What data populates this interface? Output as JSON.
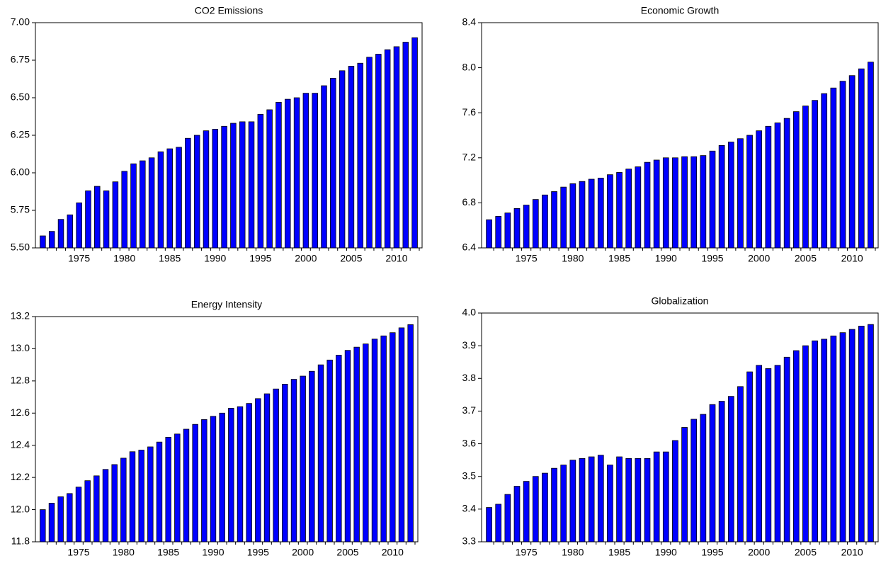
{
  "chart_data": [
    {
      "type": "bar",
      "title": "CO2 Emissions",
      "color": "#0000ff",
      "categories": [
        null,
        null,
        null,
        null,
        "1975",
        null,
        null,
        null,
        null,
        "1980",
        null,
        null,
        null,
        null,
        "1985",
        null,
        null,
        null,
        null,
        "1990",
        null,
        null,
        null,
        null,
        "1995",
        null,
        null,
        null,
        null,
        "2000",
        null,
        null,
        null,
        null,
        "2005",
        null,
        null,
        null,
        null,
        "2010",
        null,
        null
      ],
      "values": [
        5.58,
        5.61,
        5.69,
        5.72,
        5.8,
        5.88,
        5.91,
        5.88,
        5.94,
        6.01,
        6.06,
        6.08,
        6.1,
        6.14,
        6.16,
        6.17,
        6.23,
        6.25,
        6.28,
        6.29,
        6.31,
        6.33,
        6.34,
        6.34,
        6.39,
        6.42,
        6.47,
        6.49,
        6.5,
        6.53,
        6.53,
        6.58,
        6.63,
        6.68,
        6.71,
        6.73,
        6.77,
        6.79,
        6.82,
        6.84,
        6.87,
        6.9
      ],
      "ylim": [
        5.5,
        7.0
      ],
      "yticks": [
        {
          "value": 5.5,
          "label": "5.50"
        },
        5.75,
        {
          "value": 6,
          "label": "6.00"
        },
        6.25,
        {
          "value": 6.5,
          "label": "6.50"
        },
        6.75,
        {
          "value": 7,
          "label": "7.00"
        }
      ]
    },
    {
      "type": "bar",
      "title": "Economic Growth",
      "color": "#0000ff",
      "categories": [
        null,
        null,
        null,
        null,
        "1975",
        null,
        null,
        null,
        null,
        "1980",
        null,
        null,
        null,
        null,
        "1985",
        null,
        null,
        null,
        null,
        "1990",
        null,
        null,
        null,
        null,
        "1995",
        null,
        null,
        null,
        null,
        "2000",
        null,
        null,
        null,
        null,
        "2005",
        null,
        null,
        null,
        null,
        "2010",
        null,
        null
      ],
      "values": [
        6.65,
        6.68,
        6.71,
        6.75,
        6.78,
        6.83,
        6.87,
        6.9,
        6.94,
        6.97,
        6.99,
        7.01,
        7.02,
        7.05,
        7.07,
        7.1,
        7.12,
        7.16,
        7.18,
        7.2,
        7.2,
        7.21,
        7.21,
        7.22,
        7.26,
        7.31,
        7.34,
        7.37,
        7.4,
        7.44,
        7.48,
        7.51,
        7.55,
        7.61,
        7.66,
        7.71,
        7.77,
        7.82,
        7.88,
        7.93,
        7.99,
        8.05
      ],
      "ylim": [
        6.4,
        8.4
      ],
      "yticks": [
        6.4,
        6.8,
        7.2,
        7.6,
        {
          "value": 8,
          "label": "8.0"
        },
        8.4
      ]
    },
    {
      "type": "bar",
      "title": "Energy Intensity",
      "color": "#0000ff",
      "categories": [
        null,
        null,
        null,
        null,
        "1975",
        null,
        null,
        null,
        null,
        "1980",
        null,
        null,
        null,
        null,
        "1985",
        null,
        null,
        null,
        null,
        "1990",
        null,
        null,
        null,
        null,
        "1995",
        null,
        null,
        null,
        null,
        "2000",
        null,
        null,
        null,
        null,
        "2005",
        null,
        null,
        null,
        null,
        "2010",
        null,
        null
      ],
      "values": [
        12.0,
        12.04,
        12.08,
        12.1,
        12.14,
        12.18,
        12.21,
        12.25,
        12.28,
        12.32,
        12.36,
        12.37,
        12.39,
        12.42,
        12.45,
        12.47,
        12.5,
        12.53,
        12.56,
        12.58,
        12.6,
        12.63,
        12.64,
        12.66,
        12.69,
        12.72,
        12.75,
        12.78,
        12.81,
        12.83,
        12.86,
        12.9,
        12.93,
        12.96,
        12.99,
        13.01,
        13.03,
        13.06,
        13.08,
        13.1,
        13.13,
        13.15
      ],
      "ylim": [
        11.8,
        13.2
      ],
      "yticks": [
        11.8,
        {
          "value": 12,
          "label": "12.0"
        },
        12.2,
        12.4,
        12.6,
        12.8,
        {
          "value": 13,
          "label": "13.0"
        },
        13.2
      ]
    },
    {
      "type": "bar",
      "title": "Globalization",
      "color": "#0000ff",
      "categories": [
        null,
        null,
        null,
        null,
        "1975",
        null,
        null,
        null,
        null,
        "1980",
        null,
        null,
        null,
        null,
        "1985",
        null,
        null,
        null,
        null,
        "1990",
        null,
        null,
        null,
        null,
        "1995",
        null,
        null,
        null,
        null,
        "2000",
        null,
        null,
        null,
        null,
        "2005",
        null,
        null,
        null,
        null,
        "2010",
        null,
        null
      ],
      "values": [
        3.405,
        3.415,
        3.445,
        3.47,
        3.485,
        3.5,
        3.51,
        3.525,
        3.535,
        3.55,
        3.555,
        3.56,
        3.565,
        3.535,
        3.56,
        3.555,
        3.555,
        3.555,
        3.575,
        3.575,
        3.61,
        3.65,
        3.675,
        3.69,
        3.72,
        3.73,
        3.745,
        3.775,
        3.82,
        3.84,
        3.83,
        3.84,
        3.865,
        3.885,
        3.9,
        3.915,
        3.92,
        3.93,
        3.94,
        3.95,
        3.96,
        3.965
      ],
      "ylim": [
        3.3,
        4.0
      ],
      "yticks": [
        3.3,
        3.4,
        3.5,
        3.6,
        3.7,
        3.8,
        3.9,
        {
          "value": 4,
          "label": "4.0"
        }
      ]
    }
  ]
}
